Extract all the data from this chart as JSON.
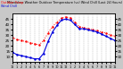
{
  "title": "Milwaukee Weather Outdoor Temperature (vs) Wind Chill (Last 24 Hours)",
  "bg_color": "#c8c8c8",
  "plot_bg": "#ffffff",
  "border_color": "#000000",
  "grid_color": "#aaaaaa",
  "line1_color": "#ff0000",
  "line2_color": "#0000dd",
  "line1_label": "Outdoor Temp",
  "line2_label": "Wind Chill",
  "hours": [
    0,
    1,
    2,
    3,
    4,
    5,
    6,
    7,
    8,
    9,
    10,
    11,
    12,
    13,
    14,
    15,
    16,
    17,
    18,
    19,
    20,
    21,
    22,
    23
  ],
  "temp": [
    28,
    26,
    25,
    24,
    23,
    22,
    21,
    25,
    32,
    38,
    42,
    46,
    47,
    46,
    42,
    38,
    37,
    36,
    35,
    34,
    33,
    32,
    30,
    29
  ],
  "windchill": [
    14,
    12,
    11,
    10,
    9,
    8,
    8,
    13,
    24,
    33,
    39,
    44,
    45,
    44,
    40,
    36,
    36,
    35,
    34,
    33,
    31,
    29,
    27,
    25
  ],
  "ylim": [
    5,
    50
  ],
  "yticks": [
    10,
    15,
    20,
    25,
    30,
    35,
    40,
    45
  ],
  "ytick_labels": [
    "10",
    "15",
    "20",
    "25",
    "30",
    "35",
    "40",
    "45"
  ],
  "xlim": [
    0,
    23
  ],
  "xticks": [
    0,
    1,
    2,
    3,
    4,
    5,
    6,
    7,
    8,
    9,
    10,
    11,
    12,
    13,
    14,
    15,
    16,
    17,
    18,
    19,
    20,
    21,
    22,
    23
  ],
  "xtick_labels": [
    "12",
    "1",
    "2",
    "3",
    "4",
    "5",
    "6",
    "7",
    "8",
    "9",
    "10",
    "11",
    "12",
    "1",
    "2",
    "3",
    "4",
    "5",
    "6",
    "7",
    "8",
    "9",
    "10",
    "11"
  ]
}
